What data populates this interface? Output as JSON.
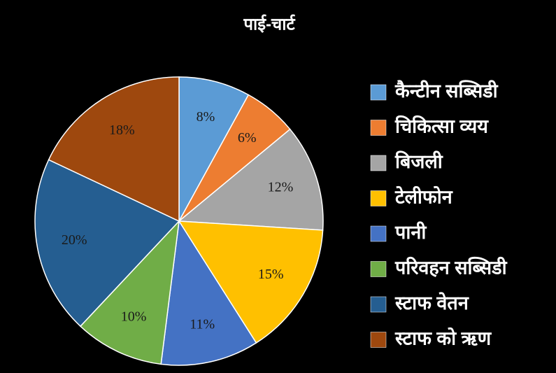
{
  "chart_data": {
    "type": "pie",
    "title": "पाई-चार्ट",
    "categories": [
      "कैन्टीन सब्सिडी",
      "चिकित्सा व्यय",
      "बिजली",
      "टेलीफोन",
      "पानी",
      "परिवहन सब्सिडी",
      "स्टाफ वेतन",
      "स्टाफ को ऋण"
    ],
    "values": [
      8,
      6,
      12,
      15,
      11,
      10,
      20,
      18
    ],
    "value_labels": [
      "8%",
      "6%",
      "12%",
      "15%",
      "11%",
      "10%",
      "20%",
      "18%"
    ],
    "colors": [
      "#5b9bd5",
      "#ed7d31",
      "#a5a5a5",
      "#ffc000",
      "#4472c4",
      "#70ad47",
      "#255e91",
      "#9e480e"
    ],
    "legend": "right"
  }
}
